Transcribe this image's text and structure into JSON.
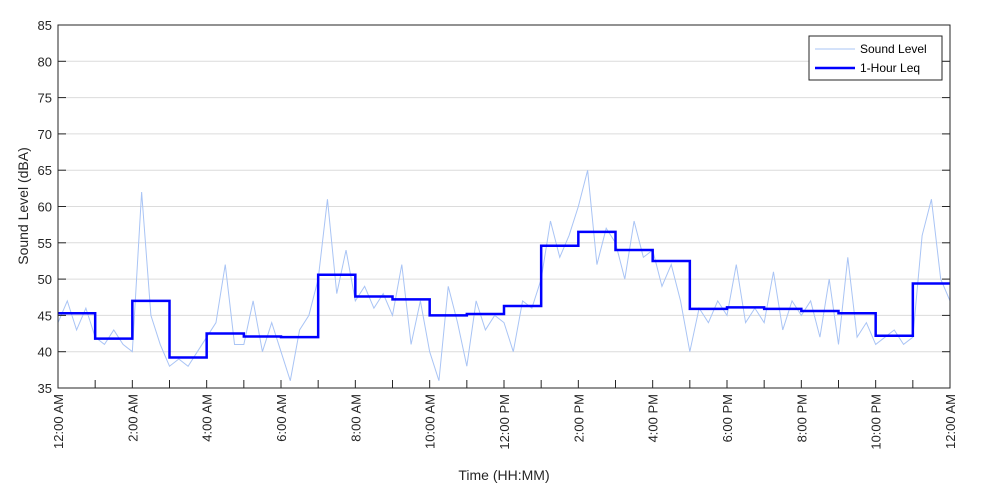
{
  "chart_data": {
    "type": "line",
    "xlabel": "Time (HH:MM)",
    "ylabel": "Sound Level (dBA)",
    "ylim": [
      35,
      85
    ],
    "yticks": [
      35,
      40,
      45,
      50,
      55,
      60,
      65,
      70,
      75,
      80,
      85
    ],
    "xlim_hours": [
      0,
      24
    ],
    "xtick_labels": [
      "12:00 AM",
      "2:00 AM",
      "4:00 AM",
      "6:00 AM",
      "8:00 AM",
      "10:00 AM",
      "12:00 PM",
      "2:00 PM",
      "4:00 PM",
      "6:00 PM",
      "8:00 PM",
      "10:00 PM",
      "12:00 AM"
    ],
    "grid": "horizontal",
    "legend": "top-right",
    "series": [
      {
        "name": "Sound Level",
        "color": "#a9c4f5",
        "step_hours": 0.25,
        "values": [
          44,
          47,
          43,
          46,
          42,
          41,
          43,
          41,
          40,
          62,
          45,
          41,
          38,
          39,
          38,
          40,
          42,
          44,
          52,
          41,
          41,
          47,
          40,
          44,
          40,
          36,
          43,
          45,
          50,
          61,
          48,
          54,
          47,
          49,
          46,
          48,
          45,
          52,
          41,
          47,
          40,
          36,
          49,
          44,
          38,
          47,
          43,
          45,
          44,
          40,
          47,
          46,
          50,
          58,
          53,
          56,
          60,
          65,
          52,
          57,
          55,
          50,
          58,
          53,
          54,
          49,
          52,
          47,
          40,
          46,
          44,
          47,
          45,
          52,
          44,
          46,
          44,
          51,
          43,
          47,
          45,
          47,
          42,
          50,
          41,
          53,
          42,
          44,
          41,
          42,
          43,
          41,
          42,
          56,
          61,
          50,
          47
        ]
      },
      {
        "name": "1-Hour Leq",
        "color": "#0000ff",
        "step_hours": 1,
        "values": [
          45.3,
          41.8,
          47.0,
          39.2,
          42.5,
          42.1,
          42.0,
          50.6,
          47.6,
          47.2,
          45.0,
          45.2,
          46.3,
          54.6,
          56.5,
          54.0,
          52.5,
          45.9,
          46.1,
          45.9,
          45.6,
          45.3,
          42.2,
          49.4
        ]
      }
    ]
  }
}
